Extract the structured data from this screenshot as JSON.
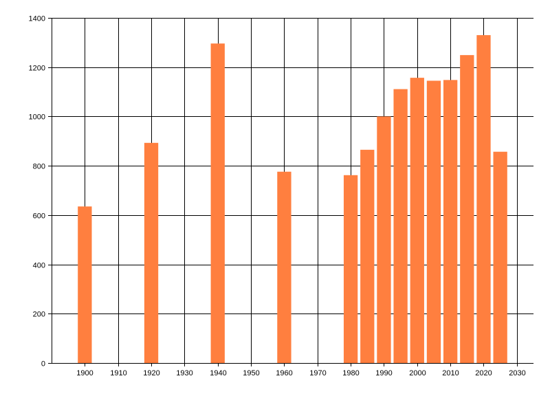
{
  "chart_data": {
    "type": "bar",
    "title": "",
    "xlabel": "",
    "ylabel": "",
    "x": [
      1900,
      1920,
      1940,
      1960,
      1980,
      1985,
      1990,
      1995,
      2000,
      2005,
      2010,
      2015,
      2020,
      2025
    ],
    "values": [
      635,
      893,
      1296,
      776,
      762,
      865,
      1000,
      1111,
      1157,
      1145,
      1148,
      1249,
      1330,
      857
    ],
    "xlim": [
      1890,
      2035
    ],
    "ylim": [
      0,
      1400
    ],
    "x_ticks": [
      1900,
      1910,
      1920,
      1930,
      1940,
      1950,
      1960,
      1970,
      1980,
      1990,
      2000,
      2010,
      2020,
      2030
    ],
    "y_ticks": [
      0,
      200,
      400,
      600,
      800,
      1000,
      1200,
      1400
    ],
    "x_tick_labels": [
      "1900",
      "1910",
      "1920",
      "1930",
      "1940",
      "1950",
      "1960",
      "1970",
      "1980",
      "1990",
      "2000",
      "2010",
      "2020",
      "2030"
    ],
    "y_tick_labels": [
      "0",
      "200",
      "400",
      "600",
      "800",
      "1000",
      "1200",
      "1400"
    ],
    "grid": true,
    "legend": "none",
    "colors": {
      "bar": "#ff7f3f",
      "grid": "#000000",
      "axis": "#000000"
    }
  }
}
